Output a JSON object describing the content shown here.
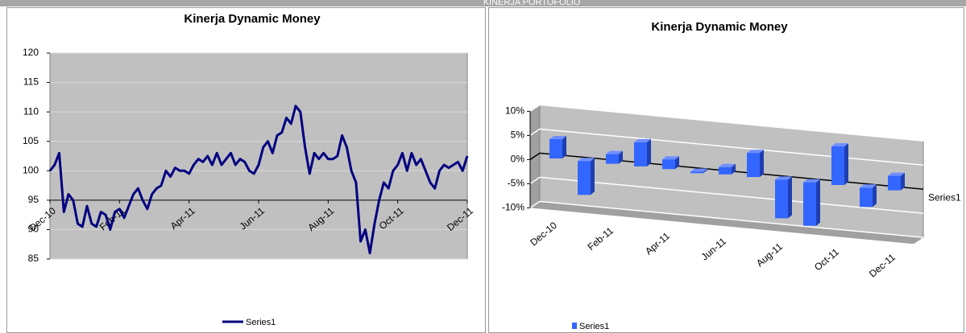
{
  "header": {
    "title": "KINERJA PORTOFOLIO"
  },
  "chart_data": [
    {
      "type": "line",
      "title": "Kinerja Dynamic Money",
      "categories": [
        "Dec-10",
        null,
        null,
        null,
        null,
        null,
        null,
        null,
        null,
        null,
        null,
        null,
        null,
        null,
        null,
        "Feb-11",
        null,
        null,
        null,
        null,
        null,
        null,
        null,
        null,
        null,
        null,
        null,
        null,
        null,
        null,
        "Apr-11",
        null,
        null,
        null,
        null,
        null,
        null,
        null,
        null,
        null,
        null,
        null,
        null,
        null,
        null,
        "Jun-11",
        null,
        null,
        null,
        null,
        null,
        null,
        null,
        null,
        null,
        null,
        null,
        null,
        null,
        null,
        "Aug-11",
        null,
        null,
        null,
        null,
        null,
        null,
        null,
        null,
        null,
        null,
        null,
        null,
        null,
        null,
        "Oct-11",
        null,
        null,
        null,
        null,
        null,
        null,
        null,
        null,
        null,
        null,
        null,
        null,
        null,
        null,
        "Dec-11"
      ],
      "series": [
        {
          "name": "Series1",
          "color": "#000080",
          "values": [
            100,
            101,
            103,
            93,
            96,
            95,
            91,
            90.5,
            94,
            91,
            90.5,
            93,
            92.5,
            90,
            93,
            93.5,
            92,
            94,
            96,
            97,
            95,
            93.5,
            96,
            97,
            97.5,
            100,
            99,
            100.5,
            100,
            100,
            99.5,
            101,
            102,
            101.5,
            102.5,
            101,
            103,
            101,
            102,
            103,
            101,
            102,
            101.5,
            100,
            99.5,
            101,
            104,
            105,
            103,
            106,
            106.5,
            109,
            108,
            111,
            110,
            104,
            99.5,
            103,
            102,
            103,
            102,
            102,
            102.5,
            106,
            104,
            100,
            98,
            88,
            90,
            86,
            91,
            95,
            98,
            97,
            100,
            101,
            103,
            100,
            103,
            101,
            102,
            100,
            98,
            97,
            100,
            101,
            100.5,
            101,
            101.5,
            100,
            102.5
          ]
        }
      ],
      "ylim": [
        85,
        120
      ],
      "yticks": [
        85,
        90,
        95,
        100,
        105,
        110,
        115,
        120
      ],
      "grid": true,
      "xaxis_crossing": 95,
      "legend": "bottom"
    },
    {
      "type": "bar3d",
      "title": "Kinerja Dynamic Money",
      "categories": [
        "Dec-10",
        null,
        "Feb-11",
        null,
        "Apr-11",
        null,
        "Jun-11",
        null,
        "Aug-11",
        null,
        "Oct-11",
        null,
        "Dec-11"
      ],
      "series": [
        {
          "name": "Series1",
          "color": "#3366ff",
          "values": [
            4,
            -7,
            2,
            5,
            2,
            -0.3,
            1.5,
            5,
            -8,
            -9,
            8,
            -4,
            3
          ]
        }
      ],
      "ylim": [
        -10,
        10
      ],
      "yticks": [
        {
          "value": -10,
          "label": "-10%"
        },
        {
          "value": -5,
          "label": "-5%"
        },
        {
          "value": 0,
          "label": "0%"
        },
        {
          "value": 5,
          "label": "5%"
        },
        {
          "value": 10,
          "label": "10%"
        }
      ],
      "grid": true,
      "legend": "bottom-left"
    }
  ]
}
